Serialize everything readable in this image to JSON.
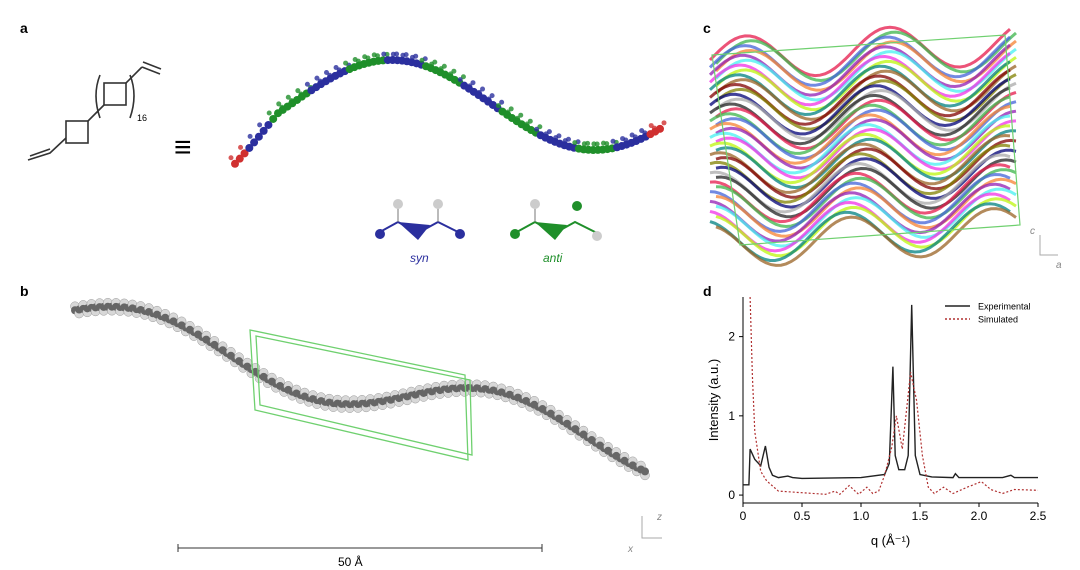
{
  "panels": {
    "a": {
      "label": "a",
      "repeat_subscript": "16",
      "equiv_symbol": "≡",
      "syn_label": "syn",
      "anti_label": "anti"
    },
    "b": {
      "label": "b",
      "scale_bar": "50 Å",
      "axis_z": "z",
      "axis_x": "x"
    },
    "c": {
      "label": "c",
      "axis_c": "c",
      "axis_a": "a"
    },
    "d": {
      "label": "d"
    }
  },
  "colors": {
    "syn": "#2b2f9e",
    "anti": "#1f8f2a",
    "end": "#d03030",
    "experimental": "#222222",
    "simulated": "#b03030",
    "cell": "#6fd06f"
  },
  "chart_data": {
    "type": "line",
    "title": "",
    "xlabel": "q (Å⁻¹)",
    "ylabel": "Intensity (a.u.)",
    "xlim": [
      0,
      2.5
    ],
    "ylim": [
      -0.1,
      2.5
    ],
    "xticks": [
      "0",
      "0.5",
      "1.0",
      "1.5",
      "2.0",
      "2.5"
    ],
    "yticks": [
      "0",
      "1",
      "2"
    ],
    "legend": "top-right",
    "series": [
      {
        "name": "Experimental",
        "style": "solid",
        "x": [
          0,
          0.05,
          0.06,
          0.1,
          0.15,
          0.19,
          0.22,
          0.25,
          0.3,
          0.38,
          0.42,
          0.5,
          1.0,
          1.2,
          1.24,
          1.27,
          1.29,
          1.32,
          1.37,
          1.4,
          1.43,
          1.46,
          1.5,
          1.6,
          1.78,
          1.8,
          1.83,
          2.2,
          2.27,
          2.3,
          2.5
        ],
        "y": [
          0.13,
          0.13,
          0.58,
          0.45,
          0.37,
          0.62,
          0.35,
          0.25,
          0.22,
          0.24,
          0.22,
          0.21,
          0.22,
          0.26,
          0.4,
          1.62,
          0.5,
          0.32,
          0.32,
          0.5,
          2.4,
          0.5,
          0.26,
          0.23,
          0.22,
          0.27,
          0.22,
          0.22,
          0.25,
          0.22,
          0.22
        ]
      },
      {
        "name": "Simulated",
        "style": "dashed",
        "x": [
          0.06,
          0.08,
          0.1,
          0.15,
          0.2,
          0.3,
          0.5,
          0.7,
          0.78,
          0.82,
          0.9,
          0.98,
          1.05,
          1.1,
          1.15,
          1.2,
          1.26,
          1.3,
          1.35,
          1.42,
          1.47,
          1.52,
          1.57,
          1.62,
          1.7,
          1.78,
          1.9,
          2.02,
          2.1,
          2.2,
          2.3,
          2.5
        ],
        "y": [
          2.5,
          1.5,
          0.8,
          0.3,
          0.18,
          0.05,
          0.03,
          0.01,
          0.05,
          0.01,
          0.12,
          0.01,
          0.1,
          0.02,
          0.05,
          0.25,
          0.6,
          1.0,
          0.58,
          1.55,
          1.2,
          0.5,
          0.1,
          0.02,
          0.1,
          0.02,
          0.1,
          0.17,
          0.07,
          0.02,
          0.07,
          0.06
        ]
      }
    ]
  }
}
